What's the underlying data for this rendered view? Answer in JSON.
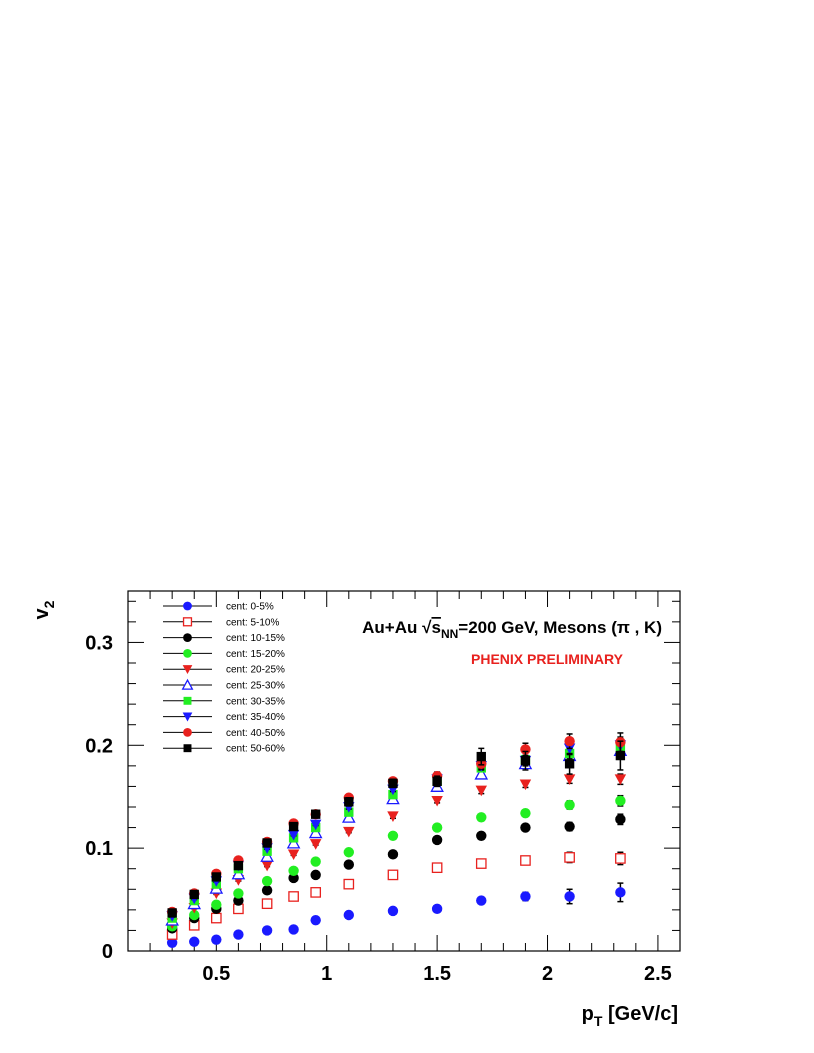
{
  "chart_data": {
    "type": "scatter",
    "xlabel_main": "p",
    "xlabel_sub": "T",
    "xlabel_unit": " [GeV/c]",
    "ylabel_main": "v",
    "ylabel_sub": "2",
    "title_prefix": "Au+Au ",
    "title_sqrt": "√",
    "title_s": "s",
    "title_sub": "NN",
    "title_suffix": "=200 GeV, Mesons (π , K)",
    "preliminary": "PHENIX PRELIMINARY",
    "xlim": [
      0.1,
      2.6
    ],
    "ylim": [
      0,
      0.35
    ],
    "x_ticks": [
      {
        "value": 0.5,
        "label": "0.5"
      },
      {
        "value": 1.0,
        "label": "1"
      },
      {
        "value": 1.5,
        "label": "1.5"
      },
      {
        "value": 2.0,
        "label": "2"
      },
      {
        "value": 2.5,
        "label": "2.5"
      }
    ],
    "y_ticks": [
      {
        "value": 0,
        "label": "0"
      },
      {
        "value": 0.1,
        "label": "0.1"
      },
      {
        "value": 0.2,
        "label": "0.2"
      },
      {
        "value": 0.3,
        "label": "0.3"
      }
    ],
    "legend_position": "top-left",
    "x": [
      0.3,
      0.4,
      0.5,
      0.6,
      0.73,
      0.85,
      0.95,
      1.1,
      1.3,
      1.5,
      1.7,
      1.9,
      2.1,
      2.33
    ],
    "series": [
      {
        "name": "cent: 0-5%",
        "marker": "circle",
        "fill": true,
        "color": "#1a1aff",
        "values": [
          0.008,
          0.009,
          0.011,
          0.016,
          0.02,
          0.021,
          0.03,
          0.035,
          0.039,
          0.041,
          0.049,
          0.053,
          0.053,
          0.057
        ],
        "errors": [
          0.001,
          0.001,
          0.001,
          0.001,
          0.001,
          0.001,
          0.001,
          0.001,
          0.002,
          0.002,
          0.003,
          0.004,
          0.007,
          0.009
        ]
      },
      {
        "name": "cent: 5-10%",
        "marker": "square",
        "fill": false,
        "color": "#e8211e",
        "values": [
          0.016,
          0.025,
          0.032,
          0.041,
          0.046,
          0.053,
          0.057,
          0.065,
          0.074,
          0.081,
          0.085,
          0.088,
          0.091,
          0.09
        ],
        "errors": [
          0.001,
          0.001,
          0.001,
          0.001,
          0.001,
          0.001,
          0.001,
          0.001,
          0.002,
          0.002,
          0.003,
          0.004,
          0.005,
          0.006
        ]
      },
      {
        "name": "cent: 10-15%",
        "marker": "circle",
        "fill": true,
        "color": "#000000",
        "values": [
          0.022,
          0.032,
          0.041,
          0.049,
          0.059,
          0.071,
          0.074,
          0.084,
          0.094,
          0.108,
          0.112,
          0.12,
          0.121,
          0.128
        ],
        "errors": [
          0.001,
          0.001,
          0.001,
          0.001,
          0.001,
          0.001,
          0.001,
          0.001,
          0.002,
          0.002,
          0.003,
          0.003,
          0.004,
          0.005
        ]
      },
      {
        "name": "cent: 15-20%",
        "marker": "circle",
        "fill": true,
        "color": "#22ee22",
        "values": [
          0.024,
          0.035,
          0.045,
          0.056,
          0.068,
          0.078,
          0.087,
          0.096,
          0.112,
          0.12,
          0.13,
          0.134,
          0.142,
          0.146
        ],
        "errors": [
          0.001,
          0.001,
          0.001,
          0.001,
          0.001,
          0.001,
          0.001,
          0.001,
          0.002,
          0.002,
          0.003,
          0.003,
          0.004,
          0.005
        ]
      },
      {
        "name": "cent: 20-25%",
        "marker": "triangle-down",
        "fill": true,
        "color": "#e8211e",
        "values": [
          0.027,
          0.042,
          0.056,
          0.069,
          0.083,
          0.094,
          0.104,
          0.116,
          0.131,
          0.146,
          0.156,
          0.162,
          0.167,
          0.167
        ],
        "errors": [
          0.001,
          0.001,
          0.001,
          0.001,
          0.001,
          0.001,
          0.001,
          0.001,
          0.002,
          0.002,
          0.003,
          0.003,
          0.004,
          0.005
        ]
      },
      {
        "name": "cent: 25-30%",
        "marker": "triangle-up",
        "fill": false,
        "color": "#1a1aff",
        "values": [
          0.03,
          0.046,
          0.061,
          0.075,
          0.092,
          0.105,
          0.115,
          0.13,
          0.148,
          0.16,
          0.172,
          0.182,
          0.19,
          0.195
        ],
        "errors": [
          0.001,
          0.001,
          0.001,
          0.001,
          0.001,
          0.001,
          0.001,
          0.001,
          0.002,
          0.002,
          0.003,
          0.004,
          0.005,
          0.006
        ]
      },
      {
        "name": "cent: 30-35%",
        "marker": "square",
        "fill": true,
        "color": "#22ee22",
        "values": [
          0.032,
          0.049,
          0.065,
          0.08,
          0.097,
          0.11,
          0.12,
          0.135,
          0.152,
          0.165,
          0.178,
          0.186,
          0.192,
          0.198
        ],
        "errors": [
          0.001,
          0.001,
          0.001,
          0.001,
          0.001,
          0.001,
          0.001,
          0.001,
          0.002,
          0.003,
          0.003,
          0.004,
          0.005,
          0.006
        ]
      },
      {
        "name": "cent: 35-40%",
        "marker": "triangle-down",
        "fill": true,
        "color": "#1a1aff",
        "values": [
          0.034,
          0.051,
          0.068,
          0.083,
          0.1,
          0.113,
          0.123,
          0.14,
          0.157,
          0.167,
          0.18,
          0.185,
          0.197,
          0.2
        ],
        "errors": [
          0.001,
          0.001,
          0.001,
          0.001,
          0.001,
          0.001,
          0.001,
          0.002,
          0.002,
          0.003,
          0.004,
          0.005,
          0.006,
          0.008
        ]
      },
      {
        "name": "cent: 40-50%",
        "marker": "circle",
        "fill": true,
        "color": "#e8211e",
        "values": [
          0.038,
          0.056,
          0.075,
          0.088,
          0.106,
          0.124,
          0.133,
          0.149,
          0.165,
          0.17,
          0.182,
          0.196,
          0.204,
          0.203
        ],
        "errors": [
          0.001,
          0.001,
          0.001,
          0.001,
          0.001,
          0.001,
          0.002,
          0.002,
          0.003,
          0.004,
          0.005,
          0.006,
          0.007,
          0.009
        ]
      },
      {
        "name": "cent: 50-60%",
        "marker": "square",
        "fill": true,
        "color": "#000000",
        "values": [
          0.037,
          0.055,
          0.072,
          0.083,
          0.105,
          0.121,
          0.133,
          0.145,
          0.163,
          0.165,
          0.189,
          0.185,
          0.182,
          0.19
        ],
        "errors": [
          0.002,
          0.002,
          0.002,
          0.002,
          0.003,
          0.003,
          0.003,
          0.004,
          0.004,
          0.005,
          0.008,
          0.009,
          0.01,
          0.014
        ]
      }
    ]
  }
}
